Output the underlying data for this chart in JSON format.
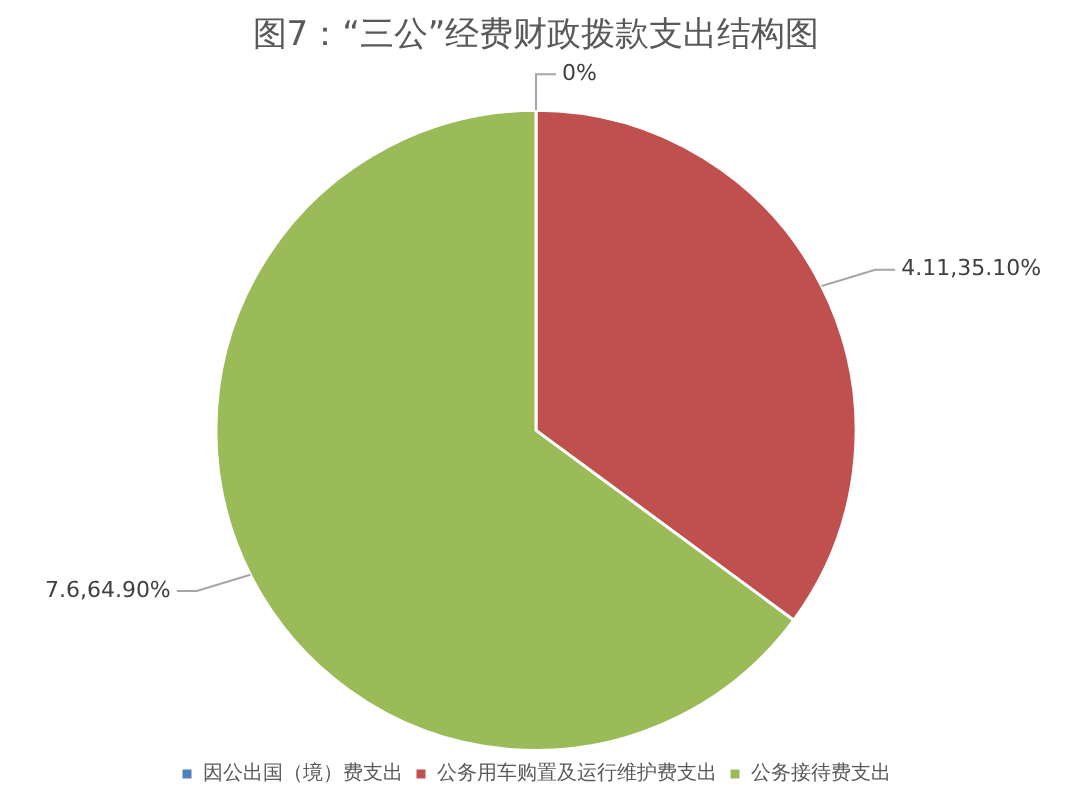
{
  "chart_data": {
    "type": "pie",
    "title": "图7：“三公”经费财政拨款支出结构图",
    "categories": [
      "因公出国（境）费支出",
      "公务用车购置及运行维护费支出",
      "公务接待费支出"
    ],
    "values": [
      0,
      35.1,
      64.9
    ],
    "colors": [
      "#4f81bd",
      "#c0504d",
      "#9bbb59"
    ],
    "value_labels": [
      "0%",
      "4.11,35.10%",
      "7.6,64.90%"
    ],
    "legend": "bottom"
  }
}
